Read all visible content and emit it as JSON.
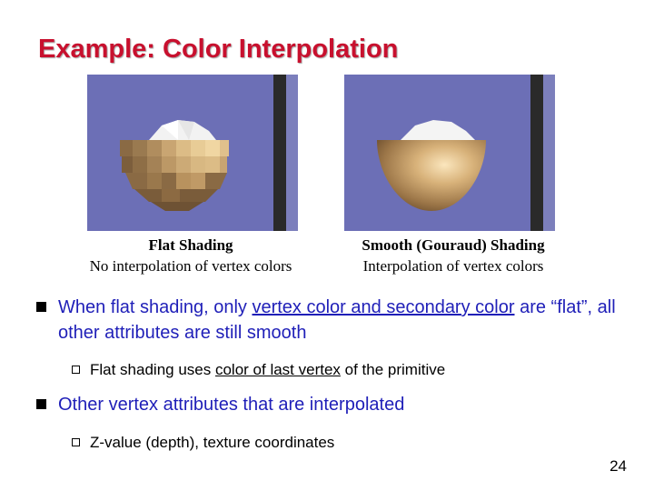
{
  "slide": {
    "title": "Example: Color Interpolation",
    "page_number": "24"
  },
  "images": {
    "left": {
      "caption_title": "Flat Shading",
      "caption_sub": "No interpolation of vertex colors"
    },
    "right": {
      "caption_title": "Smooth (Gouraud) Shading",
      "caption_sub": "Interpolation of vertex colors"
    }
  },
  "bullets": [
    {
      "prefix": "When flat shading, only ",
      "link": "vertex color and secondary color",
      "suffix": " are “flat”, all other attributes are still smooth",
      "sub": {
        "prefix": "Flat shading uses ",
        "link": "color of last vertex",
        "suffix": " of the primitive"
      }
    },
    {
      "text": "Other vertex attributes that are interpolated",
      "sub": {
        "text": "Z-value (depth), texture coordinates"
      }
    }
  ],
  "colors": {
    "title": "#c8102e",
    "bullet_text": "#1f1fb8",
    "image_background": "#6c6fb6"
  }
}
